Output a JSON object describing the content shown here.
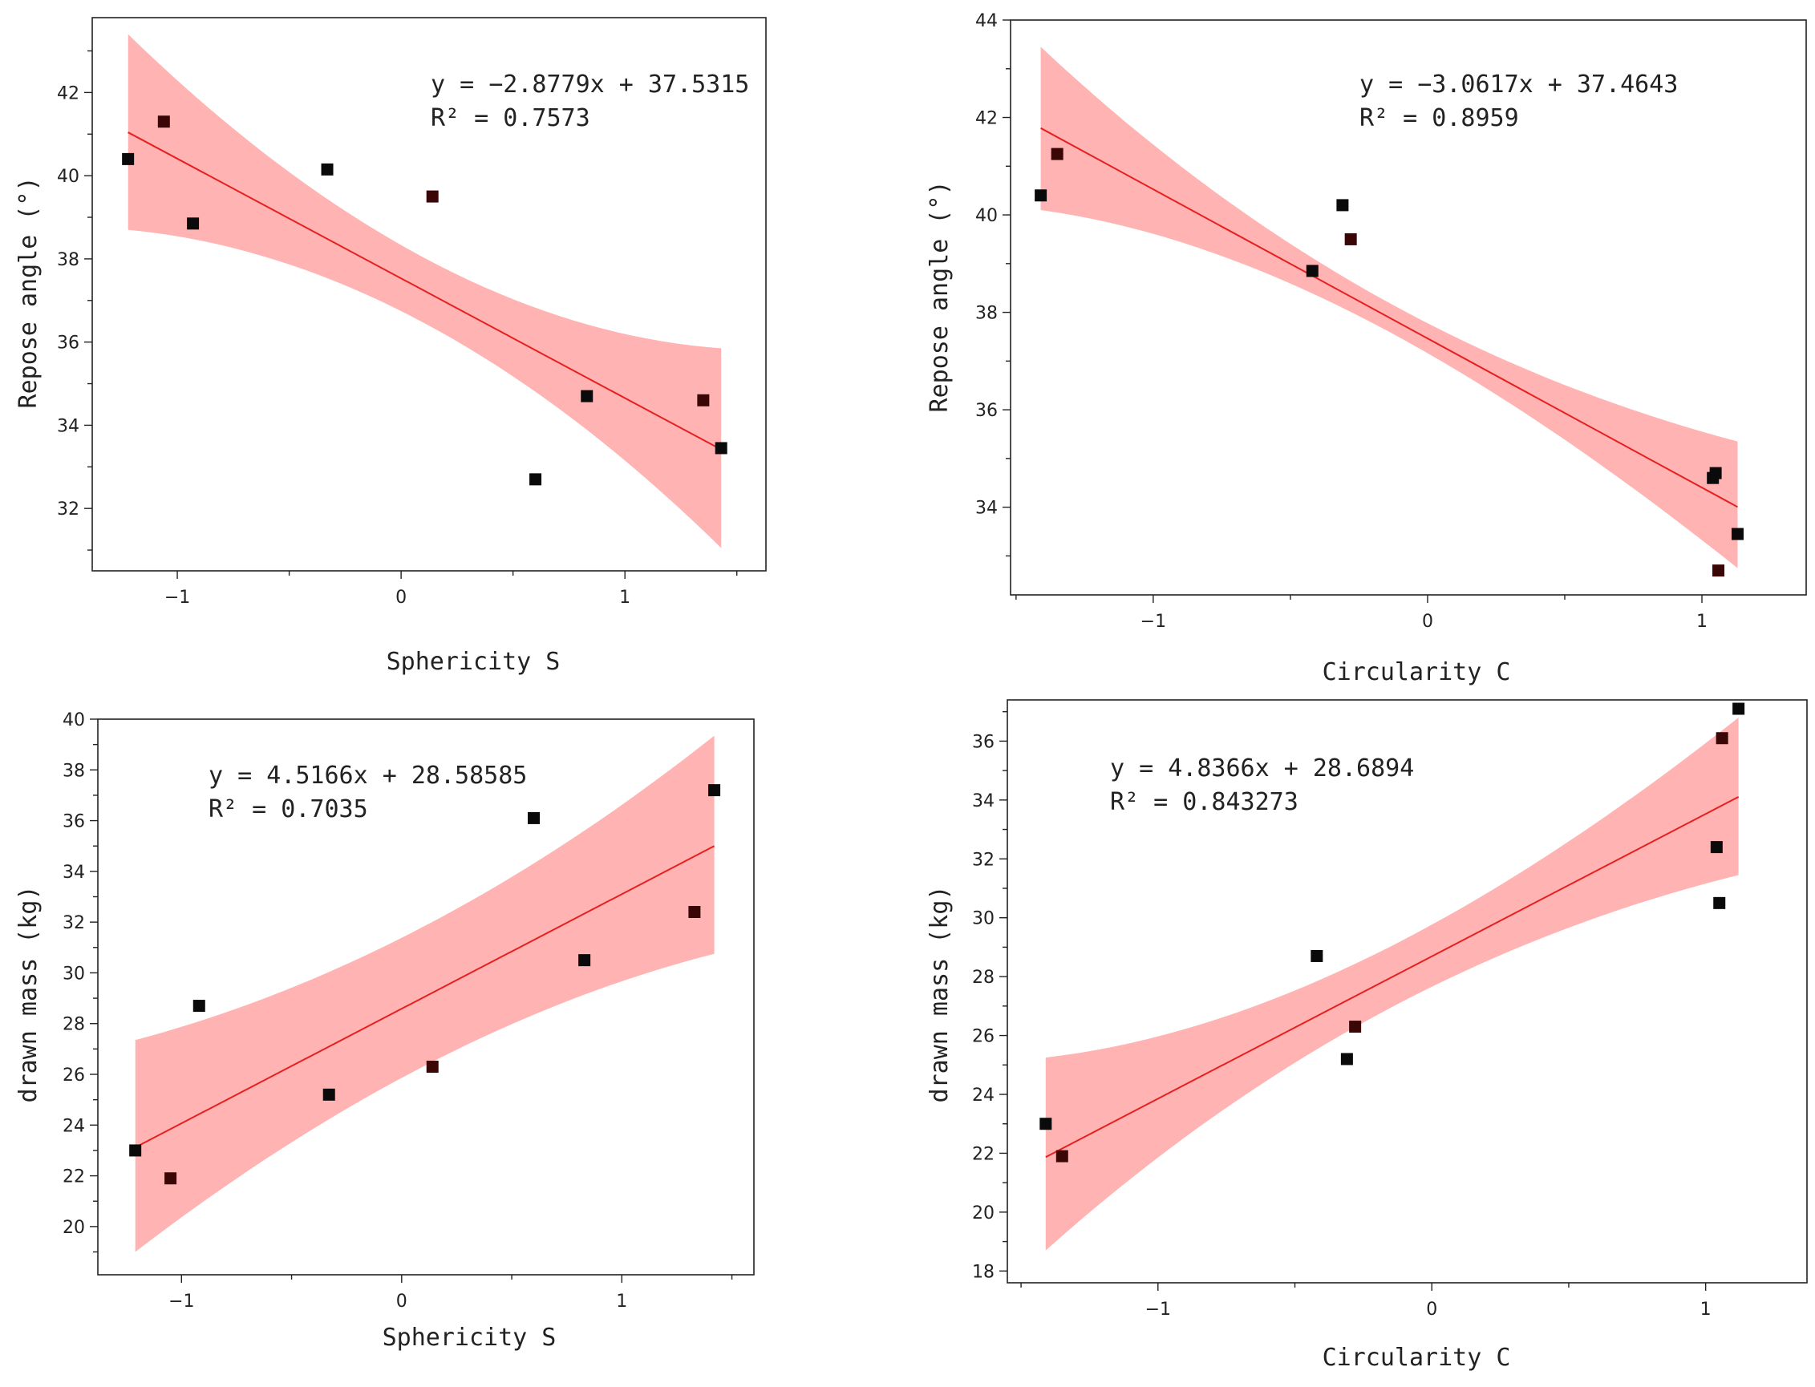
{
  "chart_data": [
    {
      "type": "scatter",
      "title": "",
      "xlabel": "Sphericity S",
      "ylabel": "Repose angle (°)",
      "xlim": [
        -1.38,
        1.63
      ],
      "ylim": [
        30.5,
        43.8
      ],
      "xticks": [
        -1,
        0,
        1
      ],
      "yticks": [
        32,
        34,
        36,
        38,
        40,
        42
      ],
      "points": {
        "x": [
          -1.22,
          -1.06,
          -0.93,
          -0.33,
          0.14,
          0.6,
          0.83,
          1.35,
          1.43
        ],
        "y": [
          40.4,
          41.3,
          38.85,
          40.15,
          39.5,
          32.7,
          34.7,
          34.6,
          33.45
        ]
      },
      "fit": {
        "slope": -2.8779,
        "intercept": 37.5315,
        "x_range": [
          -1.22,
          1.43
        ]
      },
      "band": {
        "x": [
          -1.22,
          1.43
        ],
        "upper": [
          43.4,
          35.85
        ],
        "lower": [
          38.7,
          31.05
        ],
        "bulge": [
          0.33,
          0.33
        ]
      },
      "equation": "y = −2.8779x + 37.5315",
      "r2": "R² = 0.7573"
    },
    {
      "type": "scatter",
      "title": "",
      "xlabel": "Circularity C",
      "ylabel": "Repose angle (°)",
      "xlim": [
        -1.52,
        1.38
      ],
      "ylim": [
        32.2,
        44.0
      ],
      "xticks": [
        -1,
        0,
        1
      ],
      "yticks": [
        34,
        36,
        38,
        40,
        42,
        44
      ],
      "points": {
        "x": [
          -1.41,
          -1.35,
          -0.42,
          -0.31,
          -0.28,
          1.04,
          1.05,
          1.06,
          1.13
        ],
        "y": [
          40.4,
          41.25,
          38.85,
          40.2,
          39.5,
          34.6,
          34.7,
          32.7,
          33.45
        ]
      },
      "fit": {
        "slope": -3.0617,
        "intercept": 37.4643,
        "x_range": [
          -1.41,
          1.13
        ]
      },
      "band": {
        "x": [
          -1.41,
          1.13
        ],
        "upper": [
          43.45,
          35.35
        ],
        "lower": [
          40.1,
          32.75
        ],
        "bulge": [
          0.2,
          0.2
        ]
      },
      "equation": "y = −3.0617x + 37.4643",
      "r2": "R² = 0.8959"
    },
    {
      "type": "scatter",
      "title": "",
      "xlabel": "Sphericity S",
      "ylabel": "drawn mass (kg)",
      "xlim": [
        -1.38,
        1.6
      ],
      "ylim": [
        18.1,
        40.0
      ],
      "xticks": [
        -1,
        0,
        1
      ],
      "yticks": [
        20,
        22,
        24,
        26,
        28,
        30,
        32,
        34,
        36,
        38,
        40
      ],
      "points": {
        "x": [
          -1.21,
          -1.05,
          -0.92,
          -0.33,
          0.14,
          0.6,
          0.83,
          1.33,
          1.42
        ],
        "y": [
          23.0,
          21.9,
          28.7,
          25.2,
          26.3,
          36.1,
          30.5,
          32.4,
          37.2
        ]
      },
      "fit": {
        "slope": 4.5166,
        "intercept": 28.58585,
        "x_range": [
          -1.21,
          1.42
        ]
      },
      "band": {
        "x": [
          -1.21,
          1.42
        ],
        "upper": [
          27.35,
          39.35
        ],
        "lower": [
          19.0,
          30.75
        ],
        "bulge": [
          0.65,
          0.65
        ]
      },
      "equation": "y = 4.5166x + 28.58585",
      "r2": "R² = 0.7035"
    },
    {
      "type": "scatter",
      "title": "",
      "xlabel": "Circularity C",
      "ylabel": "drawn mass (kg)",
      "xlim": [
        -1.55,
        1.37
      ],
      "ylim": [
        17.6,
        37.4
      ],
      "xticks": [
        -1,
        0,
        1
      ],
      "yticks": [
        18,
        20,
        22,
        24,
        26,
        28,
        30,
        32,
        34,
        36
      ],
      "points": {
        "x": [
          -1.41,
          -1.35,
          -0.42,
          -0.31,
          -0.28,
          1.04,
          1.05,
          1.06,
          1.12
        ],
        "y": [
          23.0,
          21.9,
          28.7,
          25.2,
          26.3,
          32.4,
          30.5,
          36.1,
          37.1
        ]
      },
      "fit": {
        "slope": 4.8366,
        "intercept": 28.6894,
        "x_range": [
          -1.41,
          1.12
        ]
      },
      "band": {
        "x": [
          -1.41,
          1.12
        ],
        "upper": [
          25.25,
          36.8
        ],
        "lower": [
          18.7,
          31.45
        ],
        "bulge": [
          0.35,
          0.35
        ]
      },
      "equation": "y = 4.8366x + 28.6894",
      "r2": "R² = 0.843273"
    }
  ],
  "colors": {
    "band_fill": "#ffb3b3",
    "fit_line": "#e62020",
    "marker": "#0a0a0a",
    "marker_alt": "#3a0606",
    "axis": "#222222"
  }
}
